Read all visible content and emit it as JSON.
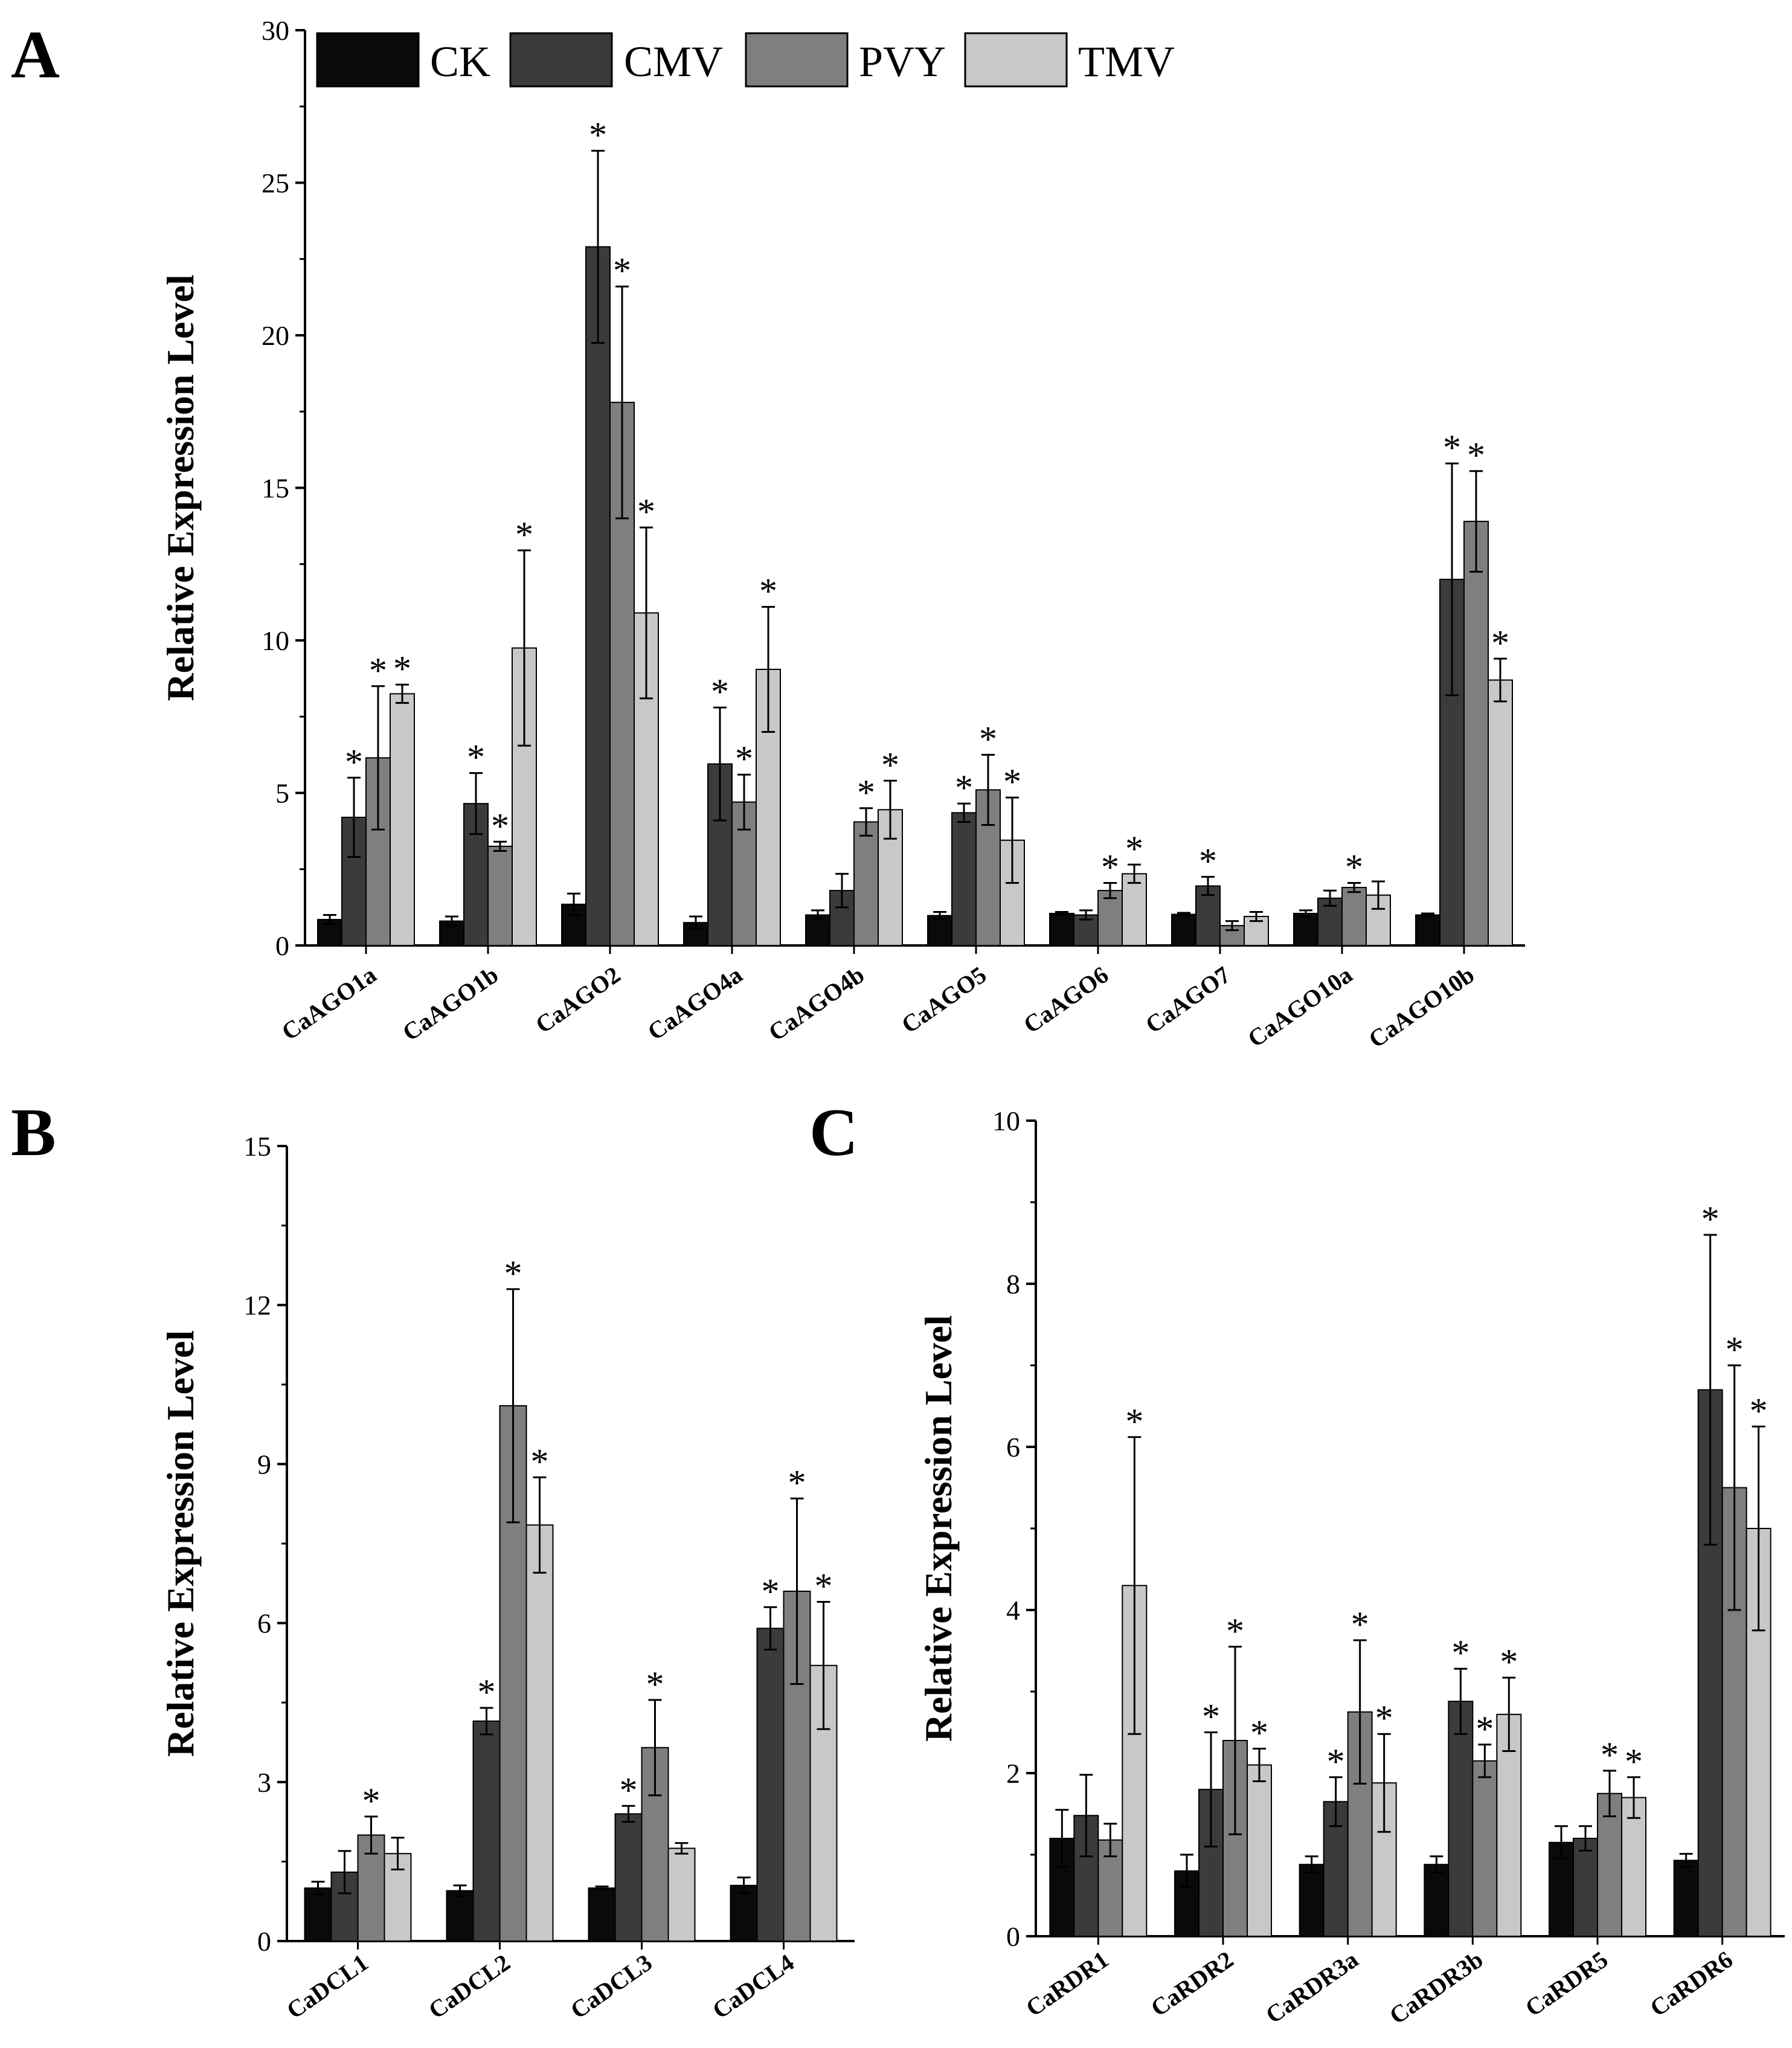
{
  "legend": [
    {
      "name": "CK",
      "color": "#0a0a0a"
    },
    {
      "name": "CMV",
      "color": "#3b3b3b"
    },
    {
      "name": "PVY",
      "color": "#7f7f7f"
    },
    {
      "name": "TMV",
      "color": "#c8c8c8"
    }
  ],
  "significance_marker": "*",
  "chart_data": [
    {
      "panel": "A",
      "type": "bar",
      "ylabel": "Relative Expression Level",
      "ylim": [
        0,
        30
      ],
      "yticks": [
        0,
        5,
        10,
        15,
        20,
        25,
        30
      ],
      "categories": [
        "CaAGO1a",
        "CaAGO1b",
        "CaAGO2",
        "CaAGO4a",
        "CaAGO4b",
        "CaAGO5",
        "CaAGO6",
        "CaAGO7",
        "CaAGO10a",
        "CaAGO10b"
      ],
      "series": [
        {
          "name": "CK",
          "values": [
            0.85,
            0.8,
            1.35,
            0.75,
            1.0,
            0.98,
            1.05,
            1.02,
            1.05,
            1.0
          ],
          "errors": [
            0.15,
            0.15,
            0.35,
            0.2,
            0.15,
            0.12,
            0.05,
            0.05,
            0.1,
            0.05
          ],
          "sig": [
            false,
            false,
            false,
            false,
            false,
            false,
            false,
            false,
            false,
            false
          ]
        },
        {
          "name": "CMV",
          "values": [
            4.2,
            4.65,
            22.9,
            5.95,
            1.8,
            4.35,
            1.0,
            1.95,
            1.55,
            12.0
          ],
          "errors": [
            1.3,
            1.0,
            3.15,
            1.85,
            0.55,
            0.3,
            0.15,
            0.3,
            0.25,
            3.8
          ],
          "sig": [
            true,
            true,
            true,
            true,
            false,
            true,
            false,
            true,
            false,
            true
          ]
        },
        {
          "name": "PVY",
          "values": [
            6.15,
            3.25,
            17.8,
            4.7,
            4.05,
            5.1,
            1.8,
            0.65,
            1.9,
            13.9
          ],
          "errors": [
            2.35,
            0.15,
            3.8,
            0.9,
            0.45,
            1.15,
            0.25,
            0.15,
            0.15,
            1.65
          ],
          "sig": [
            true,
            true,
            true,
            true,
            true,
            true,
            true,
            false,
            true,
            true
          ]
        },
        {
          "name": "TMV",
          "values": [
            8.25,
            9.75,
            10.9,
            9.05,
            4.45,
            3.45,
            2.35,
            0.95,
            1.65,
            8.7
          ],
          "errors": [
            0.3,
            3.2,
            2.8,
            2.05,
            0.95,
            1.4,
            0.3,
            0.15,
            0.45,
            0.7
          ],
          "sig": [
            true,
            true,
            true,
            true,
            true,
            true,
            true,
            false,
            false,
            true
          ]
        }
      ]
    },
    {
      "panel": "B",
      "type": "bar",
      "ylabel": "Relative Expression Level",
      "ylim": [
        0,
        15
      ],
      "yticks": [
        0,
        3,
        6,
        9,
        12,
        15
      ],
      "categories": [
        "CaDCL1",
        "CaDCL2",
        "CaDCL3",
        "CaDCL4"
      ],
      "series": [
        {
          "name": "CK",
          "values": [
            1.0,
            0.95,
            1.0,
            1.05
          ],
          "errors": [
            0.12,
            0.1,
            0.03,
            0.15
          ],
          "sig": [
            false,
            false,
            false,
            false
          ]
        },
        {
          "name": "CMV",
          "values": [
            1.3,
            4.15,
            2.4,
            5.9
          ],
          "errors": [
            0.4,
            0.25,
            0.15,
            0.4
          ],
          "sig": [
            false,
            true,
            true,
            true
          ]
        },
        {
          "name": "PVY",
          "values": [
            2.0,
            10.1,
            3.65,
            6.6
          ],
          "errors": [
            0.35,
            2.2,
            0.9,
            1.75
          ],
          "sig": [
            true,
            true,
            true,
            true
          ]
        },
        {
          "name": "TMV",
          "values": [
            1.65,
            7.85,
            1.75,
            5.2
          ],
          "errors": [
            0.3,
            0.9,
            0.1,
            1.2
          ],
          "sig": [
            false,
            true,
            false,
            true
          ]
        }
      ]
    },
    {
      "panel": "C",
      "type": "bar",
      "ylabel": "Relative Expression Level",
      "ylim": [
        0,
        10
      ],
      "yticks": [
        0,
        2,
        4,
        6,
        8,
        10
      ],
      "categories": [
        "CaRDR1",
        "CaRDR2",
        "CaRDR3a",
        "CaRDR3b",
        "CaRDR5",
        "CaRDR6"
      ],
      "series": [
        {
          "name": "CK",
          "values": [
            1.2,
            0.8,
            0.88,
            0.88,
            1.15,
            0.93
          ],
          "errors": [
            0.35,
            0.2,
            0.1,
            0.1,
            0.2,
            0.08
          ],
          "sig": [
            false,
            false,
            false,
            false,
            false,
            false
          ]
        },
        {
          "name": "CMV",
          "values": [
            1.48,
            1.8,
            1.65,
            2.88,
            1.2,
            6.7
          ],
          "errors": [
            0.5,
            0.7,
            0.3,
            0.4,
            0.15,
            1.9
          ],
          "sig": [
            false,
            true,
            true,
            true,
            false,
            true
          ]
        },
        {
          "name": "PVY",
          "values": [
            1.18,
            2.4,
            2.75,
            2.15,
            1.75,
            5.5
          ],
          "errors": [
            0.2,
            1.15,
            0.88,
            0.2,
            0.28,
            1.5
          ],
          "sig": [
            false,
            true,
            true,
            true,
            true,
            true
          ]
        },
        {
          "name": "TMV",
          "values": [
            4.3,
            2.1,
            1.88,
            2.72,
            1.7,
            5.0
          ],
          "errors": [
            1.82,
            0.2,
            0.6,
            0.45,
            0.25,
            1.25
          ],
          "sig": [
            true,
            true,
            true,
            true,
            true,
            true
          ]
        }
      ]
    }
  ]
}
